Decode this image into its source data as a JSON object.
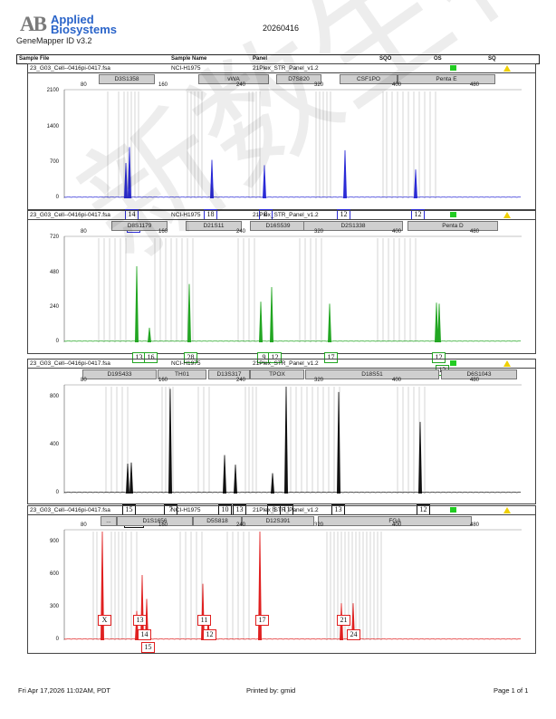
{
  "logo": {
    "ab": "AB",
    "line1": "Applied",
    "line2": "Biosystems"
  },
  "software": "GeneMapper ID v3.2",
  "date": "20260416",
  "header": {
    "sample_file": "Sample File",
    "sample_name": "Sample Name",
    "panel": "Panel",
    "sqo": "SQO",
    "os": "OS",
    "sq": "SQ"
  },
  "colors": {
    "blue": "#2b2bd6",
    "green": "#22a622",
    "black": "#111111",
    "red": "#e02020"
  },
  "panels": [
    {
      "file": "23_G03_Cell--0416pi-0417.fsa",
      "name": "NCI-H1975",
      "panel": "21Plex_STR_Panel_v1.2",
      "color": "blue",
      "bins": [
        "D3S1358",
        "vWA",
        "D7S820",
        "CSF1PO",
        "Penta E"
      ],
      "xticks": [
        "80",
        "160",
        "240",
        "320",
        "400",
        "480"
      ],
      "yticks": [
        "2100",
        "1400",
        "700",
        "0"
      ],
      "labels": [
        "14",
        "15",
        "18",
        "8",
        "12",
        "12"
      ]
    },
    {
      "file": "23_G03_Cell--0416pi-0417.fsa",
      "name": "NCI-H1975",
      "panel": "21Plex_STR_Panel_v1.2",
      "color": "green",
      "bins": [
        "D8S1179",
        "D21S11",
        "D16S539",
        "D2S1338",
        "Penta D"
      ],
      "xticks": [
        "80",
        "160",
        "240",
        "320",
        "400",
        "480"
      ],
      "yticks": [
        "720",
        "480",
        "240",
        "0"
      ],
      "labels": [
        "13",
        "16",
        "28",
        "9",
        "12",
        "17",
        "12",
        "13"
      ]
    },
    {
      "file": "23_G03_Cell--0416pi-0417.fsa",
      "name": "NCI-H1975",
      "panel": "21Plex_STR_Panel_v1.2",
      "color": "black",
      "bins": [
        "D19S433",
        "TH01",
        "D13S317",
        "TPOX",
        "D18S51",
        "D6S1043"
      ],
      "xticks": [
        "80",
        "160",
        "240",
        "320",
        "400",
        "480"
      ],
      "yticks": [
        "800",
        "400",
        "0"
      ],
      "labels": [
        "15",
        "15.2",
        "7",
        "10",
        "13",
        "8",
        "11",
        "13",
        "12"
      ]
    },
    {
      "file": "23_G03_Cell--0416pi-0417.fsa",
      "name": "NCI-H1975",
      "panel": "21Plex_STR_Panel_v1.2",
      "color": "red",
      "bins": [
        "...",
        "D1S1656",
        "D5S818",
        "D12S391",
        "FGA"
      ],
      "xticks": [
        "80",
        "160",
        "240",
        "320",
        "400",
        "480"
      ],
      "yticks": [
        "900",
        "600",
        "300",
        "0"
      ],
      "labels": [
        "X",
        "13",
        "14",
        "15",
        "11",
        "12",
        "17",
        "21",
        "24"
      ]
    }
  ],
  "footer": {
    "left": "Fri Apr 17,2026 11:02AM, PDT",
    "center": "Printed by: gmid",
    "right": "Page 1 of 1"
  }
}
